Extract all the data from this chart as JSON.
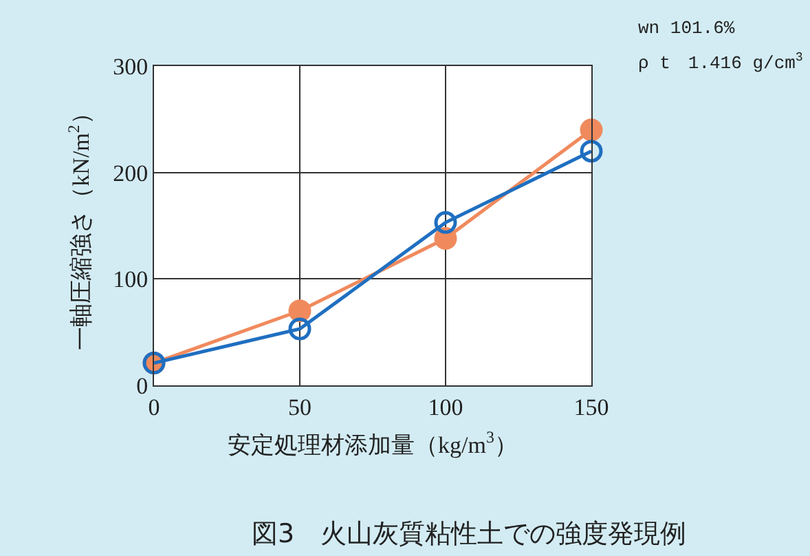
{
  "chart_data": {
    "type": "line",
    "title": "図3　火山灰質粘性土での強度発現例",
    "xlabel": "安定処理材添加量（kg/m$^{3}$）",
    "ylabel": "一軸圧縮強さ（kN/m$^{2}$）",
    "annotations": [
      "wn 101.6%",
      "ρ t　1.416 g/cm$^{3}$"
    ],
    "x": [
      0,
      50,
      100,
      150
    ],
    "series": [
      {
        "color": "#f08a5d",
        "values": [
          21,
          70,
          138,
          240
        ]
      },
      {
        "color": "#1f6fc0",
        "values": [
          21,
          53,
          153,
          220
        ]
      }
    ],
    "xlim": [
      0,
      150
    ],
    "xticks": [
      0,
      50,
      100,
      150
    ],
    "ylim": [
      0,
      300
    ],
    "yticks": [
      0,
      100,
      200,
      300
    ],
    "grid": true,
    "marker": "circle",
    "line_style": "solid"
  }
}
